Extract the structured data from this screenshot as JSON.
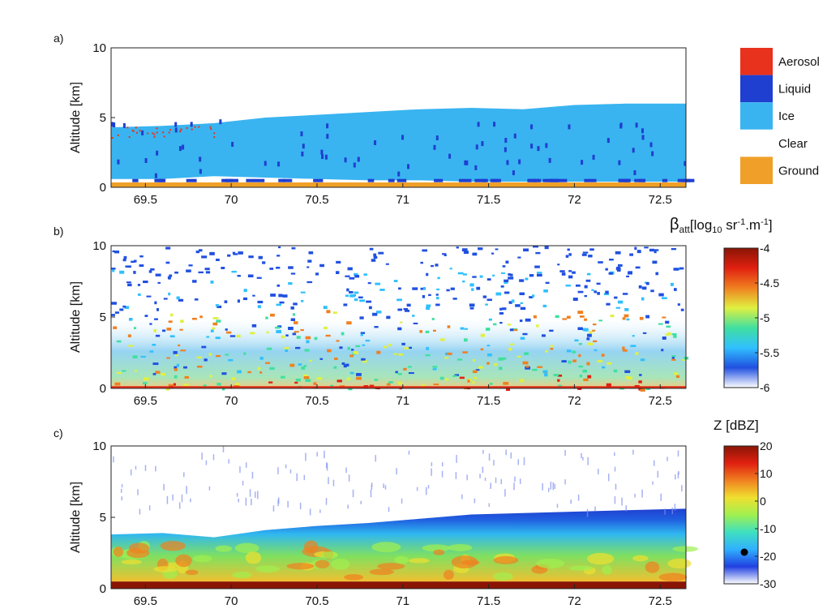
{
  "chart_data": [
    {
      "type": "heatmap",
      "panel_label": "a)",
      "ylabel": "Altitude [km]",
      "xlim": [
        69.3,
        72.65
      ],
      "ylim": [
        0,
        10
      ],
      "x_ticks": [
        69.5,
        70,
        70.5,
        71,
        71.5,
        72,
        72.5
      ],
      "x_tick_labels": [
        "69.5",
        "70",
        "70.5",
        "71",
        "71.5",
        "72",
        "72.5"
      ],
      "y_ticks": [
        0,
        5,
        10
      ],
      "y_tick_labels": [
        "0",
        "5",
        "10"
      ],
      "legend_position": "right",
      "legend": [
        {
          "label": "Aerosol",
          "color": "#e8321e"
        },
        {
          "label": "Liquid",
          "color": "#1f3fd0"
        },
        {
          "label": "Ice",
          "color": "#39b4f0"
        },
        {
          "label": "Clear",
          "color": "#ffffff"
        },
        {
          "label": "Ground",
          "color": "#f0a028"
        }
      ],
      "ice_layer": {
        "x": [
          69.3,
          69.6,
          69.9,
          70.2,
          70.5,
          70.8,
          71.1,
          71.4,
          71.7,
          72.0,
          72.3,
          72.65
        ],
        "base_km": [
          0.6,
          0.6,
          0.8,
          0.7,
          0.6,
          0.5,
          0.5,
          0.4,
          0.4,
          0.4,
          0.4,
          0.4
        ],
        "top_km": [
          4.3,
          4.4,
          4.6,
          5.0,
          5.2,
          5.4,
          5.6,
          5.7,
          5.6,
          5.9,
          6.0,
          6.0
        ]
      }
    },
    {
      "type": "heatmap",
      "panel_label": "b)",
      "ylabel": "Altitude [km]",
      "xlim": [
        69.3,
        72.65
      ],
      "ylim": [
        0,
        10
      ],
      "x_ticks": [
        69.5,
        70,
        70.5,
        71,
        71.5,
        72,
        72.5
      ],
      "x_tick_labels": [
        "69.5",
        "70",
        "70.5",
        "71",
        "71.5",
        "72",
        "72.5"
      ],
      "y_ticks": [
        0,
        5,
        10
      ],
      "y_tick_labels": [
        "0",
        "5",
        "10"
      ],
      "colorbar": {
        "title_main": "β",
        "title_sub": "att",
        "title_unit_a": "[log",
        "title_unit_sub": "10",
        "title_unit_b": " sr",
        "title_unit_sup1": "-1",
        "title_unit_c": ".m",
        "title_unit_sup2": "-1",
        "title_unit_d": "]",
        "range": [
          -6,
          -4
        ],
        "ticks": [
          -4,
          -4.5,
          -5,
          -5.5,
          -6
        ],
        "tick_labels": [
          "-4",
          "-4.5",
          "-5",
          "-5.5",
          "-6"
        ],
        "colors": [
          "#ffffff",
          "#2050e0",
          "#30c0ff",
          "#40e0a0",
          "#e0f040",
          "#f08020",
          "#e02010",
          "#8a1505"
        ]
      }
    },
    {
      "type": "heatmap",
      "panel_label": "c)",
      "ylabel": "Altitude [km]",
      "xlim": [
        69.3,
        72.65
      ],
      "ylim": [
        0,
        10
      ],
      "x_ticks": [
        69.5,
        70,
        70.5,
        71,
        71.5,
        72,
        72.5
      ],
      "x_tick_labels": [
        "69.5",
        "70",
        "70.5",
        "71",
        "71.5",
        "72",
        "72.5"
      ],
      "y_ticks": [
        0,
        5,
        10
      ],
      "y_tick_labels": [
        "0",
        "5",
        "10"
      ],
      "colorbar": {
        "title": "Z [dBZ]",
        "range": [
          -30,
          20
        ],
        "ticks": [
          20,
          10,
          0,
          -10,
          -20,
          -30
        ],
        "tick_labels": [
          "20",
          "10",
          "0",
          "-10",
          "-20",
          "-30"
        ],
        "colors": [
          "#ffffff",
          "#2040e0",
          "#30b0ff",
          "#40e0c0",
          "#a0f050",
          "#f0e030",
          "#f08020",
          "#e02010",
          "#8a1505"
        ]
      },
      "cloud_layer": {
        "x": [
          69.3,
          69.6,
          69.9,
          70.2,
          70.5,
          70.8,
          71.1,
          71.4,
          71.7,
          72.0,
          72.3,
          72.65
        ],
        "base_km": [
          0.5,
          0.5,
          0.5,
          0.5,
          0.5,
          0.5,
          0.5,
          0.5,
          0.5,
          0.5,
          0.5,
          0.5
        ],
        "top_km": [
          3.8,
          3.9,
          3.6,
          4.1,
          4.4,
          4.6,
          4.9,
          5.2,
          5.3,
          5.4,
          5.5,
          5.6
        ]
      }
    }
  ]
}
